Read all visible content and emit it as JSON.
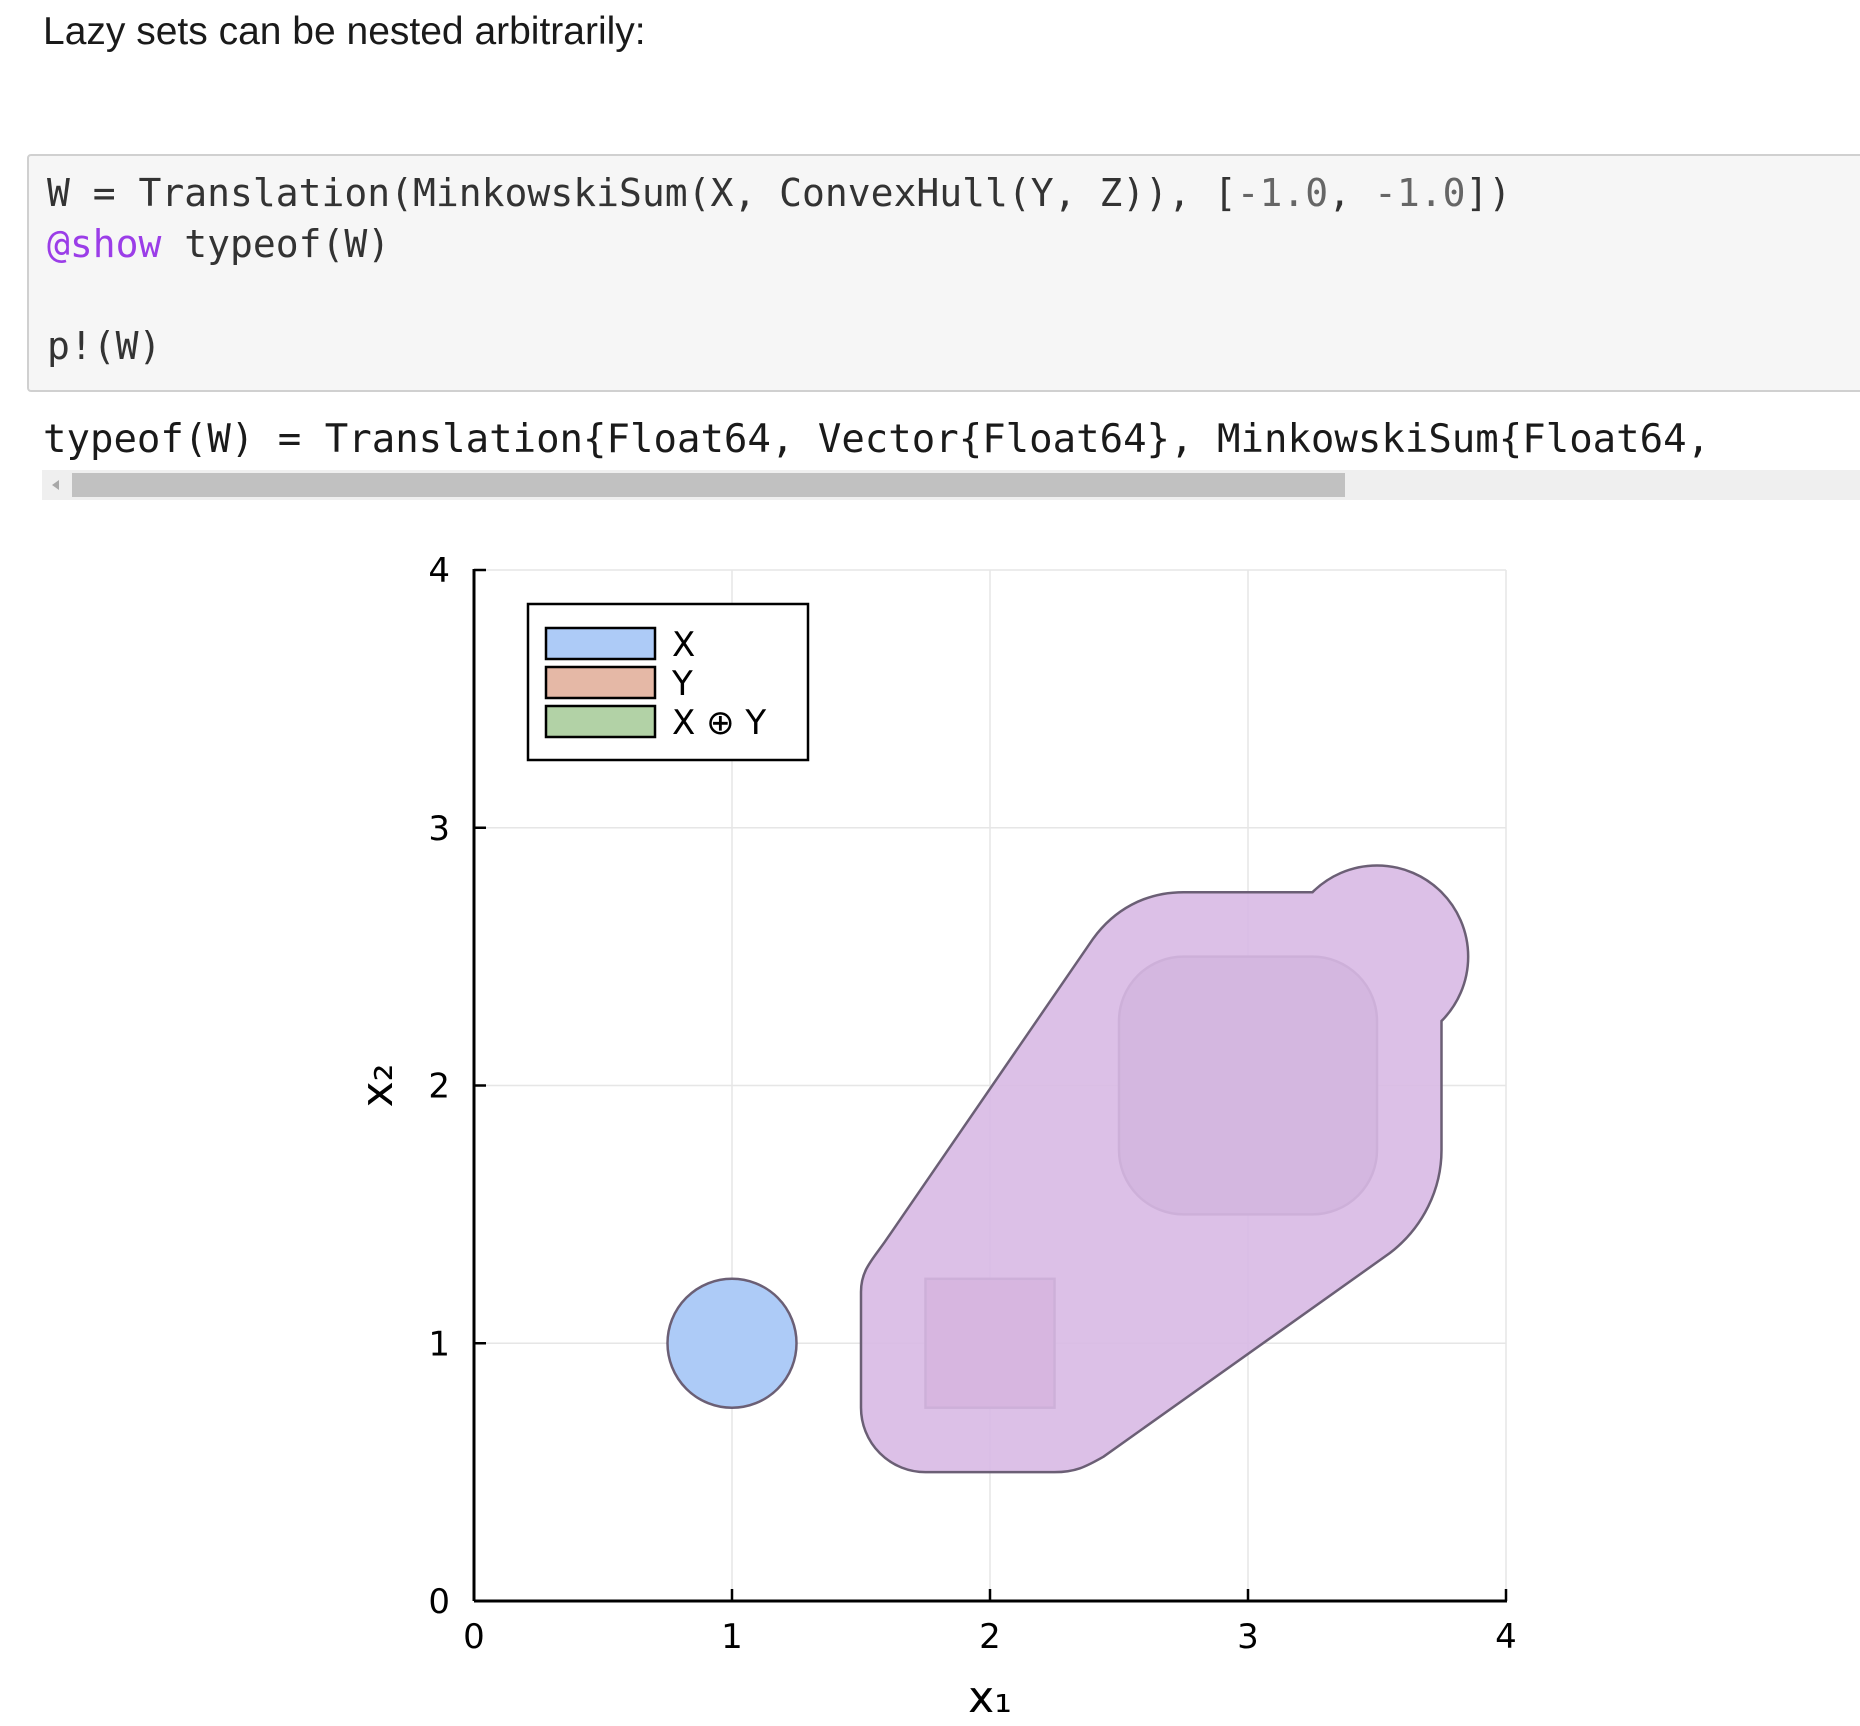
{
  "intro_text": "Lazy sets can be nested arbitrarily:",
  "code": {
    "line1": {
      "part1": "W = Translation(MinkowskiSum(X, ConvexHull(Y, Z)), [",
      "num1": "-1.0",
      "sep": ", ",
      "num2": "-1.0",
      "part2": "])"
    },
    "line2": {
      "macro": "@show",
      "rest": " typeof(W)"
    },
    "line3": "p!(W)"
  },
  "output_text": "typeof(W) = Translation{Float64, Vector{Float64}, MinkowskiSum{Float64, ",
  "chart_data": {
    "type": "area",
    "xlabel": "x₁",
    "ylabel": "x₂",
    "xlim": [
      0,
      4
    ],
    "ylim": [
      0,
      4
    ],
    "xticks": [
      0,
      1,
      2,
      3,
      4
    ],
    "yticks": [
      0,
      1,
      2,
      3,
      4
    ],
    "grid": true,
    "legend_position": "top-left",
    "legend": [
      {
        "label": "X",
        "color": "#adcbf7"
      },
      {
        "label": "Y",
        "color": "#e5b8a6"
      },
      {
        "label": "X ⊕ Y",
        "color": "#b2d2a6"
      }
    ],
    "shapes": [
      {
        "kind": "disc",
        "center": [
          1,
          1
        ],
        "radius": 0.25,
        "color": "#adcbf7"
      },
      {
        "kind": "box",
        "x": [
          1.75,
          2.25
        ],
        "y": [
          0.75,
          1.25
        ],
        "color": "#c997b6"
      },
      {
        "kind": "rounded_box",
        "x": [
          2.5,
          3.5
        ],
        "y": [
          1.5,
          2.5
        ],
        "corner_radius": 0.25,
        "color": "#b0a2bb"
      },
      {
        "kind": "hull",
        "color": "#d8b9e4",
        "opacity": 0.9
      }
    ],
    "colors": {
      "axis": "#000000",
      "grid": "#e6e6e6",
      "outline": "#6b5f75"
    }
  }
}
